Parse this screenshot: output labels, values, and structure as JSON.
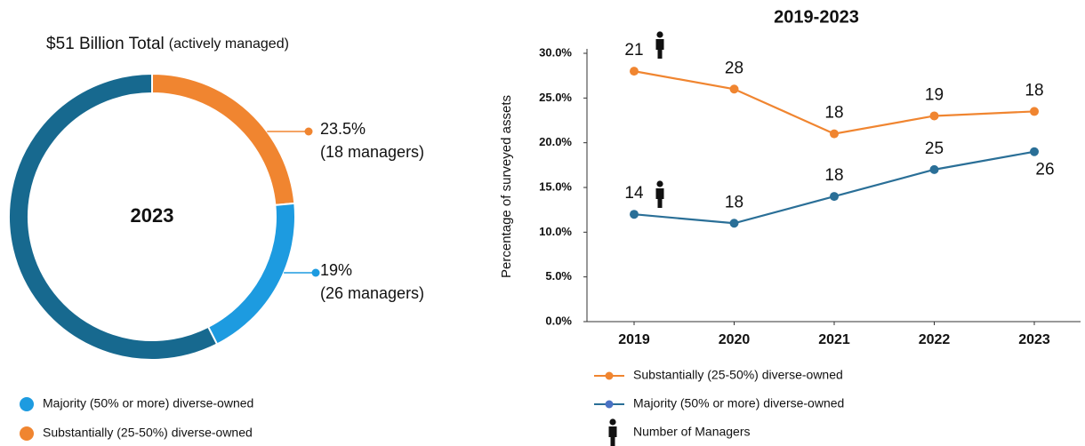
{
  "chart_data": [
    {
      "type": "donut",
      "title": "$51 Billion Total",
      "subtitle": "(actively managed)",
      "center_label": "2023",
      "categories": [
        "Substantially (25-50%) diverse-owned",
        "Majority (50% or more) diverse-owned",
        null
      ],
      "values": [
        23.5,
        19,
        57.5
      ],
      "value_labels": [
        "23.5%",
        "19%",
        null
      ],
      "sublabels": [
        "(18 managers)",
        "(26 managers)",
        null
      ],
      "colors": [
        "#f08530",
        "#1d9be0",
        "#17698f"
      ]
    },
    {
      "type": "line",
      "title": "2019-2023",
      "ylabel": "Percentage of surveyed assets",
      "categories": [
        "2019",
        "2020",
        "2021",
        "2022",
        "2023"
      ],
      "ylim": [
        0,
        30
      ],
      "yticks": [
        {
          "value": 0,
          "label": "0.0%"
        },
        {
          "value": 5,
          "label": "5.0%"
        },
        {
          "value": 10,
          "label": "10.0%"
        },
        {
          "value": 15,
          "label": "15.0%"
        },
        {
          "value": 20,
          "label": "20.0%"
        },
        {
          "value": 25,
          "label": "25.0%"
        },
        {
          "value": 30,
          "label": "30.0%"
        }
      ],
      "series": [
        {
          "name": "Substantially (25-50%) diverse-owned",
          "color": "#f08530",
          "values": [
            28,
            26,
            21,
            23,
            23.5
          ],
          "managers": [
            21,
            28,
            18,
            19,
            18
          ]
        },
        {
          "name": "Majority (50% or more) diverse-owned",
          "color": "#2a6f97",
          "values": [
            12,
            11,
            14,
            17,
            19
          ],
          "managers": [
            14,
            18,
            18,
            25,
            26
          ]
        }
      ],
      "manager_legend": "Number of Managers"
    }
  ]
}
